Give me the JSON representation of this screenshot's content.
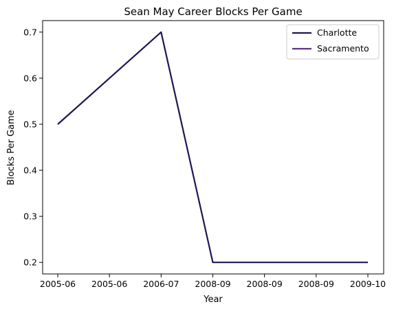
{
  "chart_data": {
    "type": "line",
    "title": "Sean May Career Blocks Per Game",
    "xlabel": "Year",
    "ylabel": "Blocks Per Game",
    "x_ticks": [
      "2005-06",
      "2005-06",
      "2006-07",
      "2008-09",
      "2008-09",
      "2008-09",
      "2009-10"
    ],
    "y_ticks": [
      "0.2",
      "0.3",
      "0.4",
      "0.5",
      "0.6",
      "0.7"
    ],
    "ylim": [
      0.175,
      0.725
    ],
    "grid": false,
    "legend_position": "top-right",
    "series": [
      {
        "name": "Charlotte",
        "color": "#1f1454",
        "points": [
          {
            "x": "2005-06",
            "y": 0.5
          },
          {
            "x": "2006-07",
            "y": 0.7
          },
          {
            "x": "2008-09",
            "y": 0.2
          },
          {
            "x": "2009-10",
            "y": 0.2
          }
        ]
      },
      {
        "name": "Sacramento",
        "color": "#5b3388",
        "points": []
      }
    ]
  }
}
